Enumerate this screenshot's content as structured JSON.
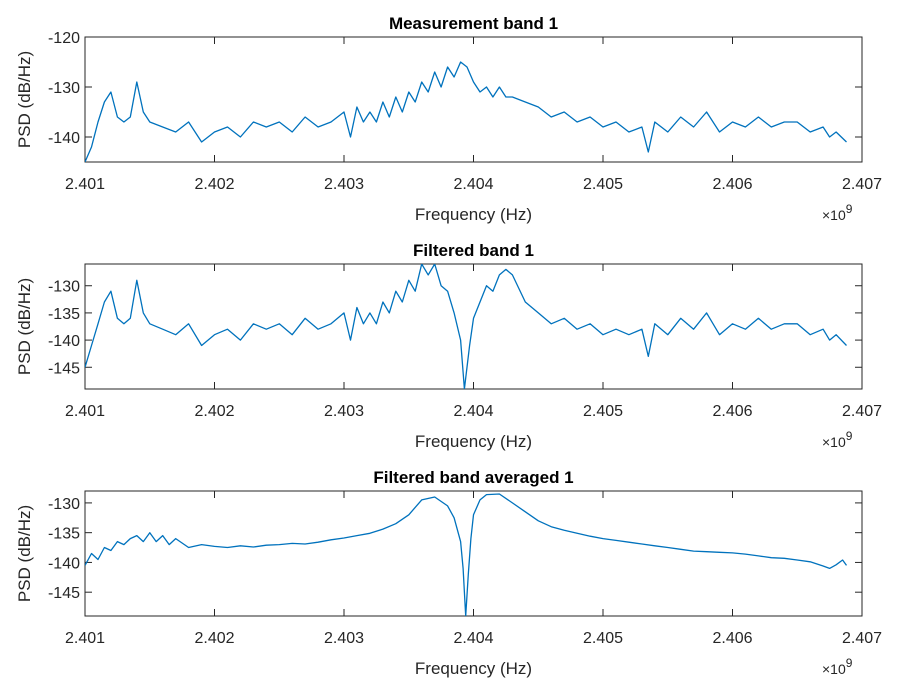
{
  "chart_data": [
    {
      "type": "line",
      "title": "Measurement band 1",
      "xlabel": "Frequency (Hz)",
      "ylabel": "PSD (dB/Hz)",
      "x_exponent_base": "×10",
      "x_exponent_power": "9",
      "xlim": [
        2.401,
        2.407
      ],
      "ylim": [
        -145,
        -120
      ],
      "xticks": [
        2.401,
        2.402,
        2.403,
        2.404,
        2.405,
        2.406,
        2.407
      ],
      "xtick_labels": [
        "2.401",
        "2.402",
        "2.403",
        "2.404",
        "2.405",
        "2.406",
        "2.407"
      ],
      "yticks": [
        -120,
        -130,
        -140
      ],
      "ytick_labels": [
        "-120",
        "-130",
        "-140"
      ],
      "color": "#0072BD",
      "series": [
        {
          "x": [
            2.401,
            2.40105,
            2.4011,
            2.40115,
            2.4012,
            2.40125,
            2.4013,
            2.40135,
            2.4014,
            2.40145,
            2.4015,
            2.4016,
            2.4017,
            2.4018,
            2.4019,
            2.402,
            2.4021,
            2.4022,
            2.4023,
            2.4024,
            2.4025,
            2.4026,
            2.4027,
            2.4028,
            2.4029,
            2.403,
            2.40305,
            2.4031,
            2.40315,
            2.4032,
            2.40325,
            2.4033,
            2.40335,
            2.4034,
            2.40345,
            2.4035,
            2.40355,
            2.4036,
            2.40365,
            2.4037,
            2.40375,
            2.4038,
            2.40385,
            2.4039,
            2.40395,
            2.404,
            2.40405,
            2.4041,
            2.40415,
            2.4042,
            2.40425,
            2.4043,
            2.4044,
            2.4045,
            2.4046,
            2.4047,
            2.4048,
            2.4049,
            2.405,
            2.4051,
            2.4052,
            2.4053,
            2.40535,
            2.4054,
            2.4055,
            2.4056,
            2.4057,
            2.4058,
            2.4059,
            2.406,
            2.4061,
            2.4062,
            2.4063,
            2.4064,
            2.4065,
            2.4066,
            2.4067,
            2.40675,
            2.4068,
            2.40688
          ],
          "y": [
            -145,
            -142,
            -137,
            -133,
            -131,
            -136,
            -137,
            -136,
            -129,
            -135,
            -137,
            -138,
            -139,
            -137,
            -141,
            -139,
            -138,
            -140,
            -137,
            -138,
            -137,
            -139,
            -136,
            -138,
            -137,
            -135,
            -140,
            -134,
            -137,
            -135,
            -137,
            -133,
            -136,
            -132,
            -135,
            -131,
            -133,
            -129,
            -131,
            -127,
            -130,
            -126,
            -128,
            -125,
            -126,
            -129,
            -131,
            -130,
            -132,
            -130,
            -132,
            -132,
            -133,
            -134,
            -136,
            -135,
            -137,
            -136,
            -138,
            -137,
            -139,
            -138,
            -143,
            -137,
            -139,
            -136,
            -138,
            -135,
            -139,
            -137,
            -138,
            -136,
            -138,
            -137,
            -137,
            -139,
            -138,
            -140,
            -139,
            -141
          ]
        }
      ]
    },
    {
      "type": "line",
      "title": "Filtered band 1",
      "xlabel": "Frequency (Hz)",
      "ylabel": "PSD (dB/Hz)",
      "x_exponent_base": "×10",
      "x_exponent_power": "9",
      "xlim": [
        2.401,
        2.407
      ],
      "ylim": [
        -149,
        -126
      ],
      "xticks": [
        2.401,
        2.402,
        2.403,
        2.404,
        2.405,
        2.406,
        2.407
      ],
      "xtick_labels": [
        "2.401",
        "2.402",
        "2.403",
        "2.404",
        "2.405",
        "2.406",
        "2.407"
      ],
      "yticks": [
        -130,
        -135,
        -140,
        -145
      ],
      "ytick_labels": [
        "-130",
        "-135",
        "-140",
        "-145"
      ],
      "color": "#0072BD",
      "series": [
        {
          "x": [
            2.401,
            2.40105,
            2.4011,
            2.40115,
            2.4012,
            2.40125,
            2.4013,
            2.40135,
            2.4014,
            2.40145,
            2.4015,
            2.4016,
            2.4017,
            2.4018,
            2.4019,
            2.402,
            2.4021,
            2.4022,
            2.4023,
            2.4024,
            2.4025,
            2.4026,
            2.4027,
            2.4028,
            2.4029,
            2.403,
            2.40305,
            2.4031,
            2.40315,
            2.4032,
            2.40325,
            2.4033,
            2.40335,
            2.4034,
            2.40345,
            2.4035,
            2.40355,
            2.4036,
            2.40365,
            2.4037,
            2.40375,
            2.4038,
            2.40385,
            2.4039,
            2.40393,
            2.40397,
            2.404,
            2.40405,
            2.4041,
            2.40415,
            2.4042,
            2.40425,
            2.4043,
            2.4044,
            2.4045,
            2.4046,
            2.4047,
            2.4048,
            2.4049,
            2.405,
            2.4051,
            2.4052,
            2.4053,
            2.40535,
            2.4054,
            2.4055,
            2.4056,
            2.4057,
            2.4058,
            2.4059,
            2.406,
            2.4061,
            2.4062,
            2.4063,
            2.4064,
            2.4065,
            2.4066,
            2.4067,
            2.40675,
            2.4068,
            2.40688
          ],
          "y": [
            -145,
            -141,
            -137,
            -133,
            -131,
            -136,
            -137,
            -136,
            -129,
            -135,
            -137,
            -138,
            -139,
            -137,
            -141,
            -139,
            -138,
            -140,
            -137,
            -138,
            -137,
            -139,
            -136,
            -138,
            -137,
            -135,
            -140,
            -134,
            -137,
            -135,
            -137,
            -133,
            -135,
            -131,
            -133,
            -129,
            -131,
            -126,
            -128,
            -126,
            -130,
            -131,
            -135,
            -140,
            -149,
            -141,
            -136,
            -133,
            -130,
            -131,
            -128,
            -127,
            -128,
            -133,
            -135,
            -137,
            -136,
            -138,
            -137,
            -139,
            -138,
            -139,
            -138,
            -143,
            -137,
            -139,
            -136,
            -138,
            -135,
            -139,
            -137,
            -138,
            -136,
            -138,
            -137,
            -137,
            -139,
            -138,
            -140,
            -139,
            -141
          ]
        }
      ]
    },
    {
      "type": "line",
      "title": "Filtered band averaged 1",
      "xlabel": "Frequency (Hz)",
      "ylabel": "PSD (dB/Hz)",
      "x_exponent_base": "×10",
      "x_exponent_power": "9",
      "xlim": [
        2.401,
        2.407
      ],
      "ylim": [
        -149,
        -128
      ],
      "xticks": [
        2.401,
        2.402,
        2.403,
        2.404,
        2.405,
        2.406,
        2.407
      ],
      "xtick_labels": [
        "2.401",
        "2.402",
        "2.403",
        "2.404",
        "2.405",
        "2.406",
        "2.407"
      ],
      "yticks": [
        -130,
        -135,
        -140,
        -145
      ],
      "ytick_labels": [
        "-130",
        "-135",
        "-140",
        "-145"
      ],
      "color": "#0072BD",
      "series": [
        {
          "x": [
            2.401,
            2.40105,
            2.4011,
            2.40115,
            2.4012,
            2.40125,
            2.4013,
            2.40135,
            2.4014,
            2.40145,
            2.4015,
            2.40155,
            2.4016,
            2.40165,
            2.4017,
            2.4018,
            2.4019,
            2.402,
            2.4021,
            2.4022,
            2.4023,
            2.4024,
            2.4025,
            2.4026,
            2.4027,
            2.4028,
            2.4029,
            2.403,
            2.4031,
            2.4032,
            2.4033,
            2.4034,
            2.4035,
            2.4036,
            2.4037,
            2.4038,
            2.40385,
            2.4039,
            2.40392,
            2.40394,
            2.40396,
            2.40398,
            2.404,
            2.40405,
            2.4041,
            2.4042,
            2.4043,
            2.4044,
            2.4045,
            2.4046,
            2.4047,
            2.4048,
            2.4049,
            2.405,
            2.4051,
            2.4052,
            2.4053,
            2.4054,
            2.4055,
            2.4056,
            2.4057,
            2.4058,
            2.4059,
            2.406,
            2.4061,
            2.4062,
            2.4063,
            2.4064,
            2.4065,
            2.4066,
            2.4067,
            2.40675,
            2.4068,
            2.40685,
            2.40688
          ],
          "y": [
            -140.5,
            -138.5,
            -139.5,
            -137.5,
            -138,
            -136.5,
            -137,
            -136,
            -135.5,
            -136.5,
            -135,
            -136.5,
            -135.5,
            -137,
            -136,
            -137.5,
            -137,
            -137.3,
            -137.5,
            -137.2,
            -137.4,
            -137.1,
            -137,
            -136.8,
            -136.9,
            -136.6,
            -136.2,
            -135.9,
            -135.5,
            -135.1,
            -134.4,
            -133.5,
            -132,
            -129.5,
            -129,
            -130.5,
            -132.5,
            -136.5,
            -141,
            -149,
            -142,
            -136,
            -132,
            -129.5,
            -128.6,
            -128.5,
            -130,
            -131.5,
            -133,
            -134,
            -134.6,
            -135.1,
            -135.6,
            -136,
            -136.3,
            -136.6,
            -136.9,
            -137.2,
            -137.5,
            -137.8,
            -138.1,
            -138.2,
            -138.3,
            -138.4,
            -138.6,
            -138.9,
            -139.2,
            -139.3,
            -139.6,
            -139.9,
            -140.6,
            -141,
            -140.4,
            -139.6,
            -140.5
          ]
        }
      ]
    }
  ]
}
